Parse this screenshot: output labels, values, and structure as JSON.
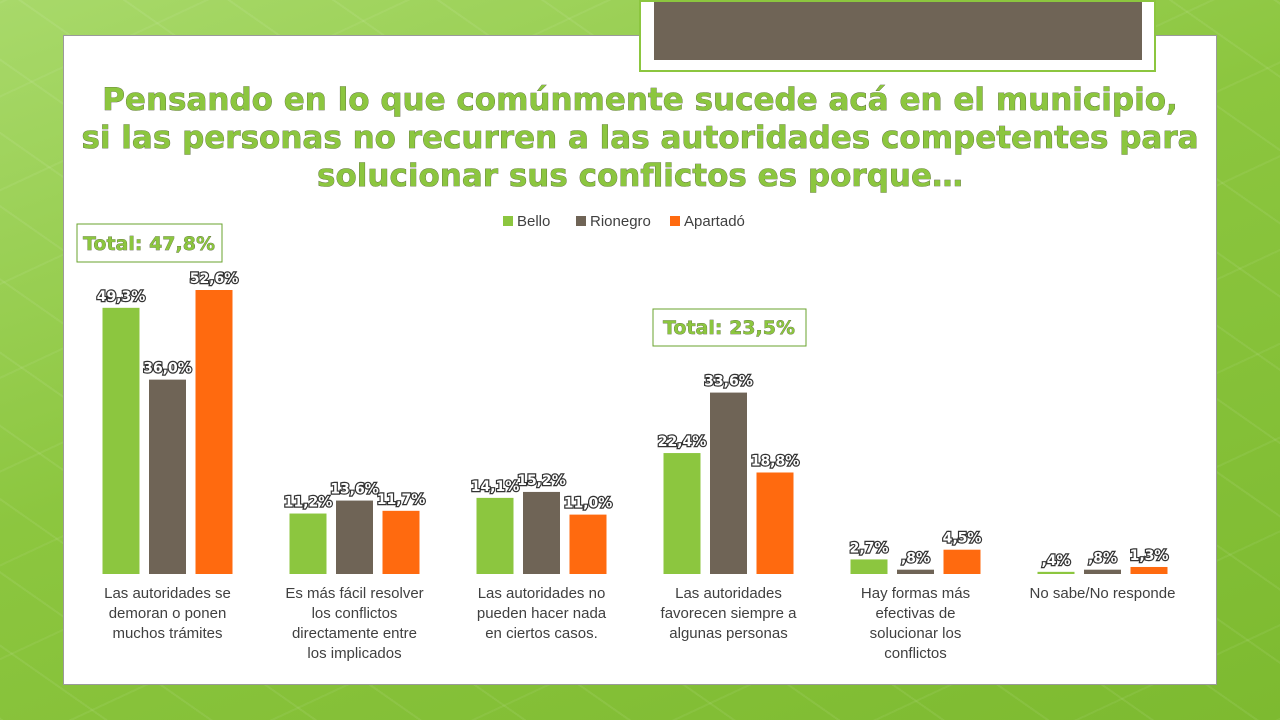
{
  "title_lines": [
    "Pensando en lo que comúnmente sucede acá en el municipio,",
    "si las personas no recurren a las autoridades competentes para",
    "solucionar sus conflictos es porque…"
  ],
  "totals": [
    "Total: 47,8%",
    "Total: 23,5%"
  ],
  "colors": {
    "accent_green": "#8cc63f",
    "deco_brown": "#6f6456"
  },
  "chart_data": {
    "type": "bar",
    "title": "Pensando en lo que comúnmente sucede acá en el municipio, si las personas no recurren a las autoridades competentes para solucionar sus conflictos es porque…",
    "legend_position": "top",
    "grid": false,
    "categories": [
      [
        "Las autoridades se",
        "demoran o ponen",
        "muchos trámites"
      ],
      [
        "Es más fácil resolver",
        "los conflictos",
        "directamente entre",
        "los implicados"
      ],
      [
        "Las autoridades no",
        "pueden hacer nada",
        "en ciertos casos."
      ],
      [
        "Las autoridades",
        "favorecen siempre a",
        "algunas personas"
      ],
      [
        "Hay formas más",
        "efectivas de",
        "solucionar los",
        "conflictos"
      ],
      [
        "No sabe/No responde"
      ]
    ],
    "ylim": [
      0,
      60
    ],
    "series": [
      {
        "name": "Bello",
        "color": "#8cc63f",
        "values": [
          49.3,
          11.2,
          14.1,
          22.4,
          2.7,
          0.4
        ],
        "labels": [
          "49,3%",
          "11,2%",
          "14,1%",
          "22,4%",
          "2,7%",
          ",4%"
        ]
      },
      {
        "name": "Rionegro",
        "color": "#6f6456",
        "values": [
          36.0,
          13.6,
          15.2,
          33.6,
          0.8,
          0.8
        ],
        "labels": [
          "36,0%",
          "13,6%",
          "15,2%",
          "33,6%",
          ",8%",
          ",8%"
        ]
      },
      {
        "name": "Apartadó",
        "color": "#ff6a0f",
        "values": [
          52.6,
          11.7,
          11.0,
          18.8,
          4.5,
          1.3
        ],
        "labels": [
          "52,6%",
          "11,7%",
          "11,0%",
          "18,8%",
          "4,5%",
          "1,3%"
        ]
      }
    ]
  }
}
